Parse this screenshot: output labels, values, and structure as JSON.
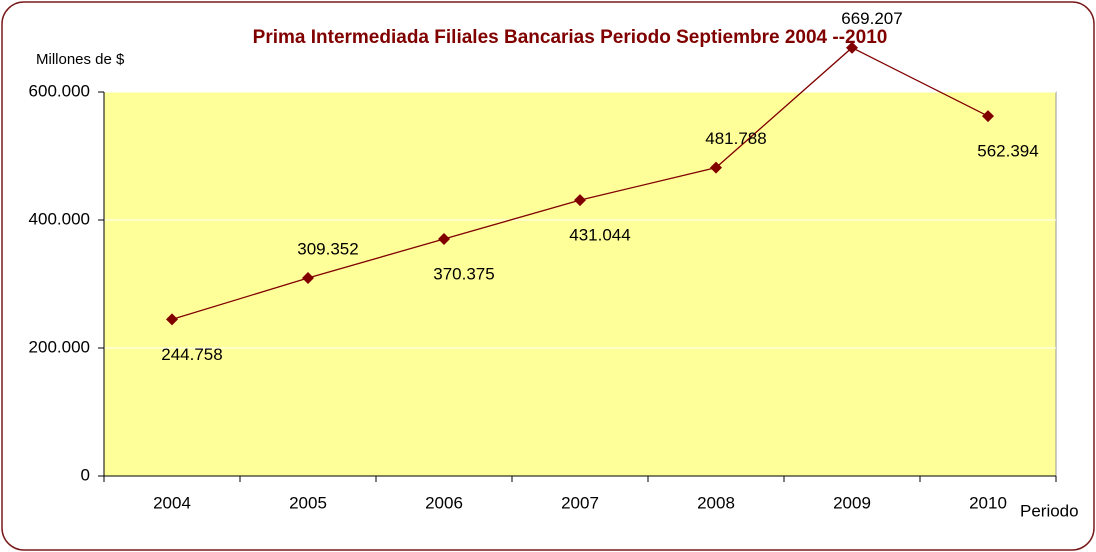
{
  "chart_data": {
    "type": "line",
    "title": "Prima Intermediada Filiales Bancarias Periodo Septiembre 2004 --2010",
    "y_label": "Millones de $",
    "x_label": "Periodo",
    "categories": [
      "2004",
      "2005",
      "2006",
      "2007",
      "2008",
      "2009",
      "2010"
    ],
    "series": [
      {
        "name": "Prima Intermediada",
        "color": "#800000",
        "values": [
          244758,
          309352,
          370375,
          431044,
          481788,
          669207,
          562394
        ],
        "value_labels": [
          "244.758",
          "309.352",
          "370.375",
          "431.044",
          "481.788",
          "669.207",
          "562.394"
        ]
      }
    ],
    "ylim": [
      0,
      600000
    ],
    "yticks": [
      0,
      {
        "value": 200000,
        "label": "200.000"
      },
      {
        "value": 400000,
        "label": "400.000"
      },
      {
        "value": 600000,
        "label": "600.000"
      }
    ],
    "grid": true,
    "plot_background": "#ffff99"
  }
}
